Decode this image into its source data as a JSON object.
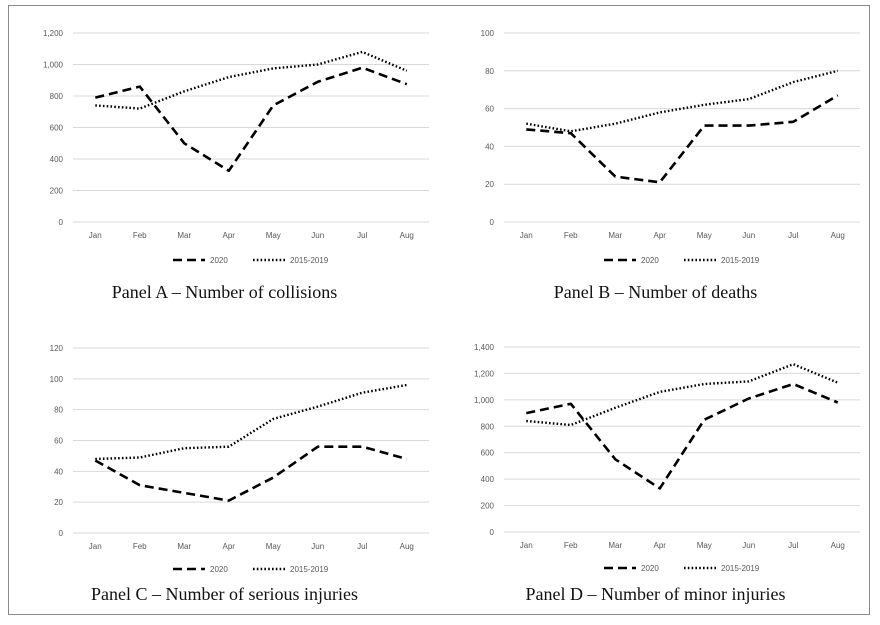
{
  "chart_data": [
    {
      "type": "line",
      "caption": "Panel A – Number of collisions",
      "categories": [
        "Jan",
        "Feb",
        "Mar",
        "Apr",
        "May",
        "Jun",
        "Jul",
        "Aug"
      ],
      "ylim": [
        0,
        1200
      ],
      "yticks": [
        0,
        200,
        400,
        600,
        800,
        1000,
        1200
      ],
      "ytick_labels": [
        "0",
        "200",
        "400",
        "600",
        "800",
        "1,000",
        "1,200"
      ],
      "grid": true,
      "legend_position": "bottom",
      "series": [
        {
          "name": "2020",
          "style": "dashed",
          "values": [
            790,
            860,
            500,
            325,
            740,
            890,
            980,
            875
          ]
        },
        {
          "name": "2015-2019",
          "style": "dotted",
          "values": [
            740,
            720,
            830,
            920,
            975,
            1000,
            1080,
            960
          ]
        }
      ]
    },
    {
      "type": "line",
      "caption": "Panel B – Number of deaths",
      "categories": [
        "Jan",
        "Feb",
        "Mar",
        "Apr",
        "May",
        "Jun",
        "Jul",
        "Aug"
      ],
      "ylim": [
        0,
        100
      ],
      "yticks": [
        0,
        20,
        40,
        60,
        80,
        100
      ],
      "ytick_labels": [
        "0",
        "20",
        "40",
        "60",
        "80",
        "100"
      ],
      "grid": true,
      "legend_position": "bottom",
      "series": [
        {
          "name": "2020",
          "style": "dashed",
          "values": [
            49,
            47,
            24,
            21,
            51,
            51,
            53,
            67
          ]
        },
        {
          "name": "2015-2019",
          "style": "dotted",
          "values": [
            52,
            48,
            52,
            58,
            62,
            65,
            74,
            80
          ]
        }
      ]
    },
    {
      "type": "line",
      "caption": "Panel C – Number of serious injuries",
      "categories": [
        "Jan",
        "Feb",
        "Mar",
        "Apr",
        "May",
        "Jun",
        "Jul",
        "Aug"
      ],
      "ylim": [
        0,
        120
      ],
      "yticks": [
        0,
        20,
        40,
        60,
        80,
        100,
        120
      ],
      "ytick_labels": [
        "0",
        "20",
        "40",
        "60",
        "80",
        "100",
        "120"
      ],
      "grid": true,
      "legend_position": "bottom",
      "series": [
        {
          "name": "2020",
          "style": "dashed",
          "values": [
            47,
            31,
            26,
            21,
            36,
            56,
            56,
            48
          ]
        },
        {
          "name": "2015-2019",
          "style": "dotted",
          "values": [
            48,
            49,
            55,
            56,
            74,
            82,
            91,
            96
          ]
        }
      ]
    },
    {
      "type": "line",
      "caption": "Panel D – Number of minor injuries",
      "categories": [
        "Jan",
        "Feb",
        "Mar",
        "Apr",
        "May",
        "Jun",
        "Jul",
        "Aug"
      ],
      "ylim": [
        0,
        1400
      ],
      "yticks": [
        0,
        200,
        400,
        600,
        800,
        1000,
        1200,
        1400
      ],
      "ytick_labels": [
        "0",
        "200",
        "400",
        "600",
        "800",
        "1,000",
        "1,200",
        "1,400"
      ],
      "grid": true,
      "legend_position": "bottom",
      "series": [
        {
          "name": "2020",
          "style": "dashed",
          "values": [
            900,
            970,
            550,
            330,
            850,
            1010,
            1120,
            980
          ]
        },
        {
          "name": "2015-2019",
          "style": "dotted",
          "values": [
            840,
            810,
            940,
            1060,
            1120,
            1140,
            1270,
            1130
          ]
        }
      ]
    }
  ]
}
